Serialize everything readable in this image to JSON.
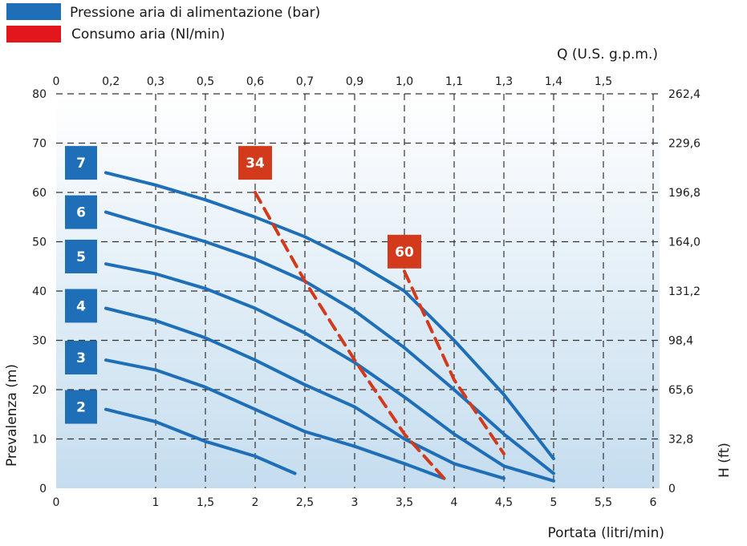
{
  "chart_data": {
    "type": "line",
    "legend": [
      {
        "label": "Pressione aria di alimentazione (bar)",
        "color": "#1e6fb8"
      },
      {
        "label": "Consumo aria (Nl/min)",
        "color": "#e2161b"
      }
    ],
    "xlabel": "Portata (litri/min)",
    "ylabel": "Prevalenza (m)",
    "x2label": "Q (U.S. g.p.m.)",
    "y2label": "H (ft)",
    "xlim": [
      0,
      6.5
    ],
    "ylim": [
      0,
      80
    ],
    "x_ticks": [
      {
        "v": 0,
        "label": "0"
      },
      {
        "v": 1,
        "label": "1"
      },
      {
        "v": 1.5,
        "label": "1,5"
      },
      {
        "v": 2,
        "label": "2"
      },
      {
        "v": 2.5,
        "label": "2,5"
      },
      {
        "v": 3,
        "label": "3"
      },
      {
        "v": 3.5,
        "label": "3,5"
      },
      {
        "v": 4,
        "label": "4"
      },
      {
        "v": 4.5,
        "label": "4,5"
      },
      {
        "v": 5,
        "label": "5"
      },
      {
        "v": 5.5,
        "label": "5,5"
      },
      {
        "v": 6,
        "label": "6"
      }
    ],
    "x_grid": [
      1,
      1.5,
      2,
      2.5,
      3,
      3.5,
      4,
      4.5,
      5,
      5.5,
      6
    ],
    "x2_ticks": [
      {
        "v": 0,
        "label": "0"
      },
      {
        "v": 0.55,
        "label": "0,2"
      },
      {
        "v": 1.0,
        "label": "0,3"
      },
      {
        "v": 1.5,
        "label": "0,5"
      },
      {
        "v": 2.0,
        "label": "0,6"
      },
      {
        "v": 2.5,
        "label": "0,7"
      },
      {
        "v": 3.0,
        "label": "0,9"
      },
      {
        "v": 3.5,
        "label": "1,0"
      },
      {
        "v": 4.0,
        "label": "1,1"
      },
      {
        "v": 4.5,
        "label": "1,3"
      },
      {
        "v": 5.0,
        "label": "1,4"
      },
      {
        "v": 5.5,
        "label": "1,5"
      }
    ],
    "y_ticks": [
      0,
      10,
      20,
      30,
      40,
      50,
      60,
      70,
      80
    ],
    "y2_ticks": [
      {
        "v": 0,
        "label": "0"
      },
      {
        "v": 10,
        "label": "32,8"
      },
      {
        "v": 20,
        "label": "65,6"
      },
      {
        "v": 30,
        "label": "98,4"
      },
      {
        "v": 40,
        "label": "131,2"
      },
      {
        "v": 50,
        "label": "164,0"
      },
      {
        "v": 60,
        "label": "196,8"
      },
      {
        "v": 70,
        "label": "229,6"
      },
      {
        "v": 80,
        "label": "262,4"
      }
    ],
    "series": [
      {
        "name": "7",
        "kind": "pressure",
        "color": "#1e6fb8",
        "badge_at": [
          0.25,
          66
        ],
        "points": [
          [
            0.5,
            64
          ],
          [
            1,
            61.5
          ],
          [
            1.5,
            58.5
          ],
          [
            2,
            55
          ],
          [
            2.5,
            51
          ],
          [
            3,
            46
          ],
          [
            3.5,
            40
          ],
          [
            4,
            30
          ],
          [
            4.5,
            19
          ],
          [
            5,
            6
          ]
        ]
      },
      {
        "name": "6",
        "kind": "pressure",
        "color": "#1e6fb8",
        "badge_at": [
          0.25,
          56
        ],
        "points": [
          [
            0.5,
            56
          ],
          [
            1,
            53
          ],
          [
            1.5,
            50
          ],
          [
            2,
            46.5
          ],
          [
            2.5,
            42
          ],
          [
            3,
            36
          ],
          [
            3.5,
            28.5
          ],
          [
            4,
            20
          ],
          [
            4.5,
            11
          ],
          [
            5,
            3
          ]
        ]
      },
      {
        "name": "5",
        "kind": "pressure",
        "color": "#1e6fb8",
        "badge_at": [
          0.25,
          47
        ],
        "points": [
          [
            0.5,
            45.5
          ],
          [
            1,
            43.5
          ],
          [
            1.5,
            40.5
          ],
          [
            2,
            36.5
          ],
          [
            2.5,
            31.5
          ],
          [
            3,
            25.5
          ],
          [
            3.5,
            18.5
          ],
          [
            4,
            11
          ],
          [
            4.5,
            4.5
          ],
          [
            5,
            1.5
          ]
        ]
      },
      {
        "name": "4",
        "kind": "pressure",
        "color": "#1e6fb8",
        "badge_at": [
          0.25,
          37
        ],
        "points": [
          [
            0.5,
            36.5
          ],
          [
            1,
            34
          ],
          [
            1.5,
            30.5
          ],
          [
            2,
            26
          ],
          [
            2.5,
            21
          ],
          [
            3,
            16.5
          ],
          [
            3.5,
            10
          ],
          [
            4,
            5
          ],
          [
            4.5,
            2
          ]
        ]
      },
      {
        "name": "3",
        "kind": "pressure",
        "color": "#1e6fb8",
        "badge_at": [
          0.25,
          26.5
        ],
        "points": [
          [
            0.5,
            26
          ],
          [
            1,
            24
          ],
          [
            1.5,
            20.5
          ],
          [
            2,
            16
          ],
          [
            2.5,
            11.5
          ],
          [
            3,
            8.5
          ],
          [
            3.5,
            5
          ],
          [
            3.9,
            2
          ]
        ]
      },
      {
        "name": "2",
        "kind": "pressure",
        "color": "#1e6fb8",
        "badge_at": [
          0.25,
          16.5
        ],
        "points": [
          [
            0.5,
            16
          ],
          [
            1,
            13.5
          ],
          [
            1.5,
            9.5
          ],
          [
            2,
            6.5
          ],
          [
            2.4,
            3
          ]
        ]
      },
      {
        "name": "34",
        "kind": "air",
        "color": "#d33a1c",
        "badge_at": [
          2,
          66
        ],
        "points": [
          [
            2,
            60
          ],
          [
            2.5,
            42
          ],
          [
            3,
            26
          ],
          [
            3.5,
            11
          ],
          [
            3.9,
            2
          ]
        ]
      },
      {
        "name": "60",
        "kind": "air",
        "color": "#d33a1c",
        "badge_at": [
          3.5,
          48
        ],
        "points": [
          [
            3.5,
            44
          ],
          [
            4,
            22
          ],
          [
            4.5,
            7
          ]
        ]
      }
    ]
  }
}
